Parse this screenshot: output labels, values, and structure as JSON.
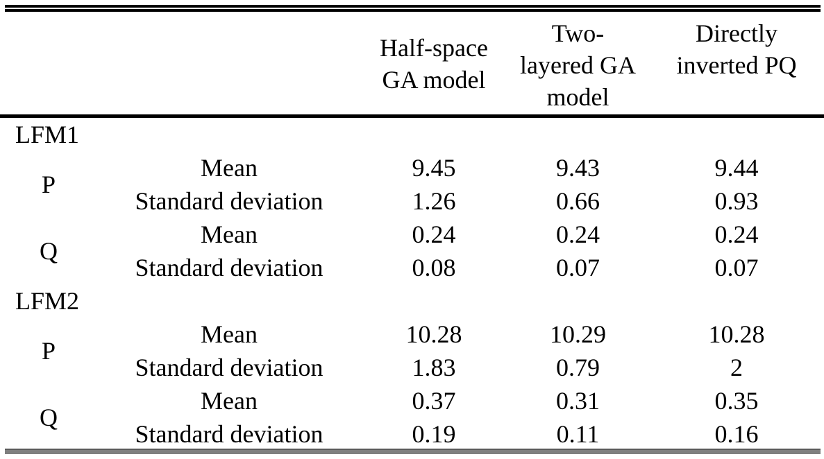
{
  "header": {
    "col3": [
      "Half-space",
      "GA model"
    ],
    "col4": [
      "Two-",
      "layered GA",
      "model"
    ],
    "col5": [
      "Directly",
      "inverted PQ"
    ]
  },
  "labels": {
    "mean": "Mean",
    "std": "Standard deviation"
  },
  "groups": [
    {
      "name": "LFM1",
      "params": [
        {
          "name": "P",
          "mean": [
            "9.45",
            "9.43",
            "9.44"
          ],
          "std": [
            "1.26",
            "0.66",
            "0.93"
          ]
        },
        {
          "name": "Q",
          "mean": [
            "0.24",
            "0.24",
            "0.24"
          ],
          "std": [
            "0.08",
            "0.07",
            "0.07"
          ]
        }
      ]
    },
    {
      "name": "LFM2",
      "params": [
        {
          "name": "P",
          "mean": [
            "10.28",
            "10.29",
            "10.28"
          ],
          "std": [
            "1.83",
            "0.79",
            "2"
          ]
        },
        {
          "name": "Q",
          "mean": [
            "0.37",
            "0.31",
            "0.35"
          ],
          "std": [
            "0.19",
            "0.11",
            "0.16"
          ]
        }
      ]
    }
  ],
  "colors": {
    "text": "#000000",
    "rules": "#000000",
    "bottom_bar": "#7f7f7f"
  },
  "chart_data": {
    "type": "table",
    "columns": [
      "Group",
      "Parameter",
      "Statistic",
      "Half-space GA model",
      "Two-layered GA model",
      "Directly inverted PQ"
    ],
    "rows": [
      [
        "LFM1",
        "P",
        "Mean",
        9.45,
        9.43,
        9.44
      ],
      [
        "LFM1",
        "P",
        "Standard deviation",
        1.26,
        0.66,
        0.93
      ],
      [
        "LFM1",
        "Q",
        "Mean",
        0.24,
        0.24,
        0.24
      ],
      [
        "LFM1",
        "Q",
        "Standard deviation",
        0.08,
        0.07,
        0.07
      ],
      [
        "LFM2",
        "P",
        "Mean",
        10.28,
        10.29,
        10.28
      ],
      [
        "LFM2",
        "P",
        "Standard deviation",
        1.83,
        0.79,
        2
      ],
      [
        "LFM2",
        "Q",
        "Mean",
        0.37,
        0.31,
        0.35
      ],
      [
        "LFM2",
        "Q",
        "Standard deviation",
        0.19,
        0.11,
        0.16
      ]
    ]
  }
}
